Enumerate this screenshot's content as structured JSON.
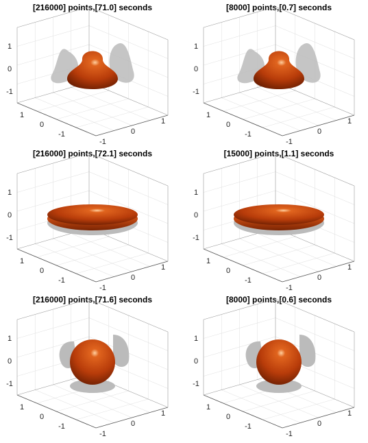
{
  "panels": [
    {
      "title": "[216000] points,[71.0] seconds",
      "shape": "bell",
      "zticks": [
        "1",
        "0",
        "-1"
      ],
      "xticks": [
        "1",
        "0",
        "-1"
      ],
      "yticks": [
        "-1",
        "0",
        "1"
      ]
    },
    {
      "title": "[8000] points,[0.7] seconds",
      "shape": "bell",
      "zticks": [
        "1",
        "0",
        "-1"
      ],
      "xticks": [
        "1",
        "0",
        "-1"
      ],
      "yticks": [
        "-1",
        "0",
        "1"
      ]
    },
    {
      "title": "[216000] points,[72.1] seconds",
      "shape": "disk",
      "zticks": [
        "1",
        "0",
        "-1"
      ],
      "xticks": [
        "1",
        "0",
        "-1"
      ],
      "yticks": [
        "-1",
        "0",
        "1"
      ]
    },
    {
      "title": "[15000] points,[1.1] seconds",
      "shape": "disk",
      "zticks": [
        "1",
        "0",
        "-1"
      ],
      "xticks": [
        "1",
        "0",
        "-1"
      ],
      "yticks": [
        "-1",
        "0",
        "1"
      ]
    },
    {
      "title": "[216000] points,[71.6] seconds",
      "shape": "sphere",
      "zticks": [
        "1",
        "0",
        "-1"
      ],
      "xticks": [
        "1",
        "0",
        "-1"
      ],
      "yticks": [
        "-1",
        "0",
        "1"
      ]
    },
    {
      "title": "[8000] points,[0.6] seconds",
      "shape": "sphere",
      "zticks": [
        "1",
        "0",
        "-1"
      ],
      "xticks": [
        "1",
        "0",
        "-1"
      ],
      "yticks": [
        "-1",
        "0",
        "1"
      ]
    }
  ]
}
